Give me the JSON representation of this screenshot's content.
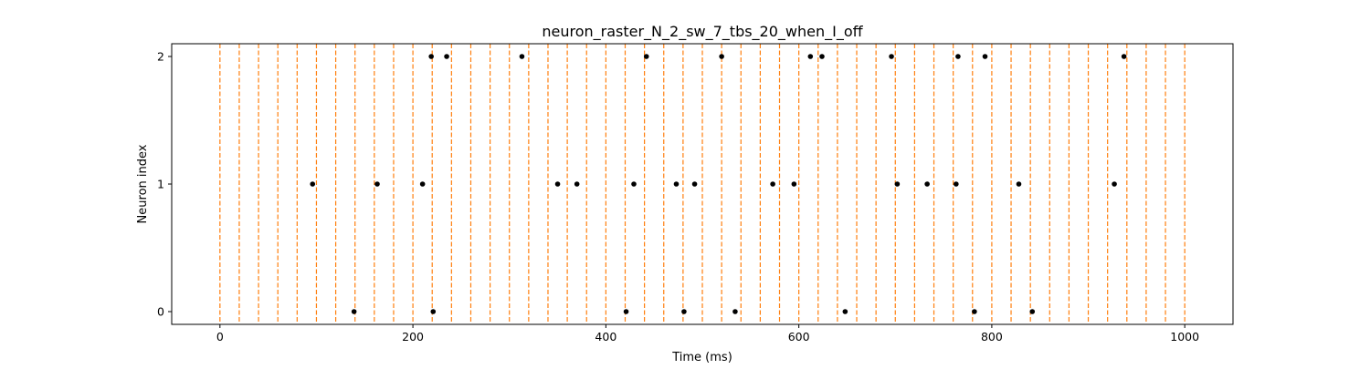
{
  "chart_data": {
    "type": "scatter",
    "title": "neuron_raster_N_2_sw_7_tbs_20_when_I_off",
    "xlabel": "Time (ms)",
    "ylabel": "Neuron index",
    "xlim": [
      -50,
      1050
    ],
    "ylim": [
      -0.1,
      2.1
    ],
    "xticks": [
      0,
      200,
      400,
      600,
      800,
      1000
    ],
    "yticks": [
      0,
      1,
      2
    ],
    "grid": false,
    "legend": "none",
    "marker_color": "#000000",
    "vline_color": "#ff7f0e",
    "vline_style": "dashed",
    "vlines": [
      0,
      20,
      40,
      60,
      80,
      100,
      120,
      140,
      160,
      180,
      200,
      220,
      240,
      260,
      280,
      300,
      320,
      340,
      360,
      380,
      400,
      420,
      440,
      460,
      480,
      500,
      520,
      540,
      560,
      580,
      600,
      620,
      640,
      660,
      680,
      700,
      720,
      740,
      760,
      780,
      800,
      820,
      840,
      860,
      880,
      900,
      920,
      940,
      960,
      980,
      1000
    ],
    "spikes": [
      {
        "neuron": 0,
        "times": [
          139,
          221,
          421,
          481,
          534,
          648,
          782,
          842
        ]
      },
      {
        "neuron": 1,
        "times": [
          96,
          163,
          210,
          350,
          370,
          429,
          473,
          492,
          573,
          595,
          702,
          733,
          763,
          828,
          927
        ]
      },
      {
        "neuron": 2,
        "times": [
          219,
          235,
          313,
          442,
          520,
          612,
          624,
          696,
          765,
          793,
          937
        ]
      }
    ]
  }
}
